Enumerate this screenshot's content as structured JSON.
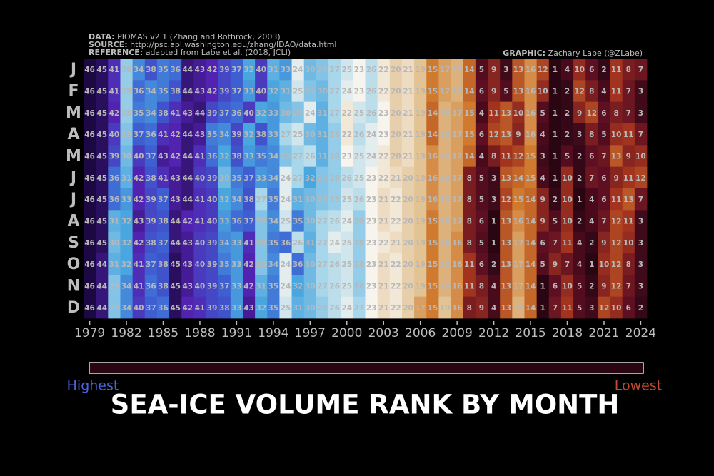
{
  "header": {
    "lines": [
      {
        "label": "DATA:",
        "text": "PIOMAS v2.1 (Zhang and Rothrock, 2003)"
      },
      {
        "label": "SOURCE:",
        "text": "http://psc.apl.washington.edu/zhang/IDAO/data.html"
      },
      {
        "label": "REFERENCE:",
        "text": "adapted from Labe et al. (2018, JCLI)"
      }
    ],
    "credit": {
      "label": "GRAPHIC:",
      "text": "Zachary Labe (@ZLabe)"
    }
  },
  "chart_data": {
    "type": "heatmap",
    "title": "SEA-ICE VOLUME RANK BY MONTH",
    "x": [
      1979,
      1980,
      1981,
      1982,
      1983,
      1984,
      1985,
      1986,
      1987,
      1988,
      1989,
      1990,
      1991,
      1992,
      1993,
      1994,
      1995,
      1996,
      1997,
      1998,
      1999,
      2000,
      2001,
      2002,
      2003,
      2004,
      2005,
      2006,
      2007,
      2008,
      2009,
      2010,
      2011,
      2012,
      2013,
      2014,
      2015,
      2016,
      2017,
      2018,
      2019,
      2020,
      2021,
      2022,
      2023,
      2024
    ],
    "xticks": [
      1979,
      1982,
      1985,
      1988,
      1991,
      1994,
      1997,
      2000,
      2003,
      2006,
      2009,
      2012,
      2015,
      2018,
      2021,
      2024
    ],
    "rows": [
      "J",
      "F",
      "M",
      "A",
      "M",
      "J",
      "J",
      "A",
      "S",
      "O",
      "N",
      "D"
    ],
    "values": [
      [
        46,
        45,
        41,
        28,
        34,
        38,
        35,
        36,
        44,
        43,
        42,
        39,
        37,
        32,
        40,
        31,
        33,
        24,
        30,
        29,
        27,
        25,
        23,
        26,
        22,
        20,
        21,
        19,
        15,
        17,
        18,
        14,
        5,
        9,
        3,
        13,
        16,
        12,
        1,
        4,
        10,
        6,
        2,
        11,
        8,
        7
      ],
      [
        46,
        45,
        41,
        28,
        36,
        34,
        35,
        38,
        44,
        43,
        42,
        39,
        37,
        33,
        40,
        32,
        31,
        25,
        29,
        30,
        27,
        24,
        23,
        26,
        22,
        20,
        21,
        19,
        15,
        17,
        18,
        14,
        6,
        9,
        5,
        13,
        16,
        10,
        1,
        2,
        12,
        8,
        4,
        11,
        7,
        3
      ],
      [
        46,
        45,
        42,
        28,
        35,
        34,
        38,
        41,
        43,
        44,
        39,
        37,
        36,
        40,
        32,
        33,
        30,
        29,
        24,
        31,
        27,
        22,
        25,
        26,
        23,
        20,
        21,
        19,
        14,
        18,
        17,
        15,
        4,
        11,
        13,
        10,
        16,
        5,
        1,
        2,
        9,
        12,
        6,
        8,
        7,
        3
      ],
      [
        46,
        45,
        40,
        29,
        37,
        36,
        41,
        42,
        44,
        43,
        35,
        34,
        39,
        32,
        38,
        33,
        27,
        25,
        30,
        31,
        28,
        22,
        26,
        24,
        23,
        20,
        21,
        19,
        14,
        18,
        17,
        15,
        6,
        12,
        13,
        9,
        16,
        4,
        1,
        2,
        3,
        8,
        5,
        10,
        11,
        7
      ],
      [
        46,
        45,
        39,
        30,
        40,
        37,
        43,
        42,
        44,
        41,
        36,
        32,
        38,
        33,
        35,
        34,
        29,
        27,
        26,
        31,
        28,
        23,
        25,
        24,
        22,
        20,
        21,
        19,
        16,
        18,
        17,
        14,
        4,
        8,
        11,
        12,
        15,
        3,
        1,
        5,
        2,
        6,
        7,
        13,
        9,
        10
      ],
      [
        46,
        45,
        36,
        31,
        42,
        38,
        41,
        43,
        44,
        40,
        39,
        30,
        35,
        37,
        33,
        34,
        24,
        27,
        32,
        29,
        28,
        26,
        25,
        23,
        22,
        21,
        20,
        19,
        16,
        18,
        17,
        8,
        5,
        3,
        13,
        14,
        15,
        4,
        1,
        10,
        2,
        7,
        6,
        9,
        11,
        12
      ],
      [
        46,
        45,
        36,
        33,
        42,
        39,
        37,
        43,
        44,
        41,
        40,
        32,
        34,
        38,
        27,
        35,
        24,
        31,
        30,
        29,
        28,
        25,
        26,
        23,
        21,
        22,
        20,
        19,
        16,
        18,
        17,
        8,
        5,
        3,
        12,
        15,
        14,
        9,
        2,
        10,
        1,
        4,
        6,
        11,
        13,
        7
      ],
      [
        46,
        45,
        31,
        32,
        43,
        39,
        38,
        44,
        42,
        41,
        40,
        33,
        36,
        37,
        29,
        34,
        25,
        35,
        30,
        27,
        26,
        24,
        28,
        23,
        21,
        22,
        20,
        19,
        15,
        18,
        17,
        8,
        6,
        1,
        13,
        16,
        14,
        9,
        5,
        10,
        2,
        4,
        7,
        12,
        11,
        3
      ],
      [
        46,
        45,
        30,
        32,
        42,
        38,
        37,
        44,
        43,
        40,
        39,
        34,
        33,
        41,
        29,
        35,
        36,
        26,
        31,
        27,
        24,
        25,
        28,
        23,
        22,
        21,
        20,
        19,
        15,
        18,
        16,
        8,
        5,
        1,
        13,
        17,
        14,
        6,
        7,
        11,
        4,
        2,
        9,
        12,
        10,
        3
      ],
      [
        46,
        44,
        31,
        32,
        41,
        37,
        38,
        45,
        43,
        40,
        39,
        35,
        33,
        42,
        29,
        34,
        24,
        36,
        30,
        27,
        26,
        25,
        28,
        23,
        21,
        22,
        20,
        19,
        15,
        18,
        16,
        11,
        6,
        2,
        13,
        17,
        14,
        5,
        9,
        7,
        4,
        1,
        10,
        12,
        8,
        3
      ],
      [
        46,
        44,
        29,
        34,
        41,
        36,
        38,
        45,
        43,
        40,
        39,
        37,
        33,
        42,
        31,
        35,
        24,
        32,
        30,
        27,
        26,
        25,
        28,
        23,
        21,
        22,
        20,
        19,
        15,
        18,
        16,
        11,
        8,
        4,
        13,
        17,
        14,
        1,
        6,
        10,
        5,
        2,
        9,
        12,
        7,
        3
      ],
      [
        46,
        44,
        29,
        34,
        40,
        37,
        36,
        45,
        42,
        41,
        39,
        38,
        33,
        43,
        32,
        35,
        25,
        31,
        30,
        28,
        26,
        24,
        27,
        23,
        21,
        22,
        20,
        17,
        15,
        19,
        16,
        8,
        9,
        4,
        13,
        18,
        14,
        1,
        7,
        11,
        5,
        3,
        12,
        10,
        6,
        2
      ]
    ],
    "colorscale": [
      [
        1,
        "#2a0613"
      ],
      [
        6,
        "#5e0f22"
      ],
      [
        11,
        "#a2331f"
      ],
      [
        15,
        "#cf7a2e"
      ],
      [
        19,
        "#e2c394"
      ],
      [
        23,
        "#f7f4ee"
      ],
      [
        27,
        "#a8d6ea"
      ],
      [
        32,
        "#4aa6df"
      ],
      [
        37,
        "#3d5fd2"
      ],
      [
        42,
        "#5222b0"
      ],
      [
        46,
        "#1c0943"
      ]
    ],
    "legend_low_label": "Highest",
    "legend_high_label": "Lowest"
  }
}
